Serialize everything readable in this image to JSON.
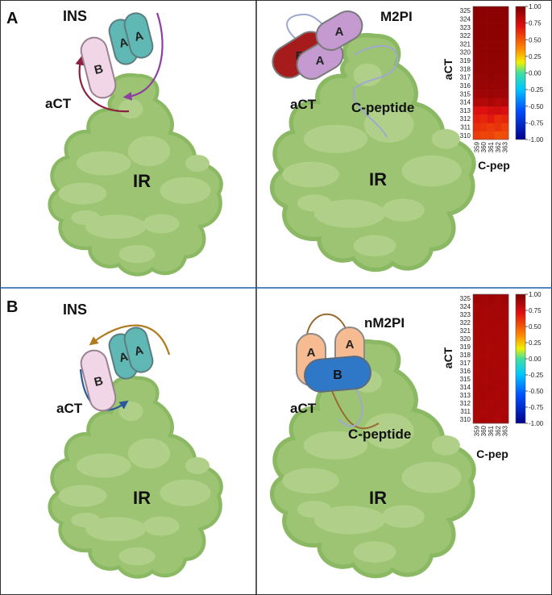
{
  "panels": [
    {
      "letter": "A",
      "left": {
        "title": "INS",
        "receptor_label": "IR",
        "actc_label": "aCT",
        "chains": [
          "B",
          "A",
          "A"
        ]
      },
      "right": {
        "title": "M2PI",
        "receptor_label": "IR",
        "actc_label": "aCT",
        "cpep_label": "C-peptide",
        "chains": [
          "B",
          "A",
          "A"
        ]
      },
      "heatmap": {
        "y_label": "aCT",
        "x_label": "C-pep"
      }
    },
    {
      "letter": "B",
      "left": {
        "title": "INS",
        "receptor_label": "IR",
        "actc_label": "aCT",
        "chains": [
          "B",
          "A",
          "A"
        ]
      },
      "right": {
        "title": "nM2PI",
        "receptor_label": "IR",
        "actc_label": "aCT",
        "cpep_label": "C-peptide",
        "chains": [
          "A",
          "A",
          "B"
        ]
      },
      "heatmap": {
        "y_label": "aCT",
        "x_label": "C-pep"
      }
    }
  ],
  "chart_data": [
    {
      "type": "heatmap",
      "x_categories": [
        "359",
        "360",
        "361",
        "362",
        "363"
      ],
      "y_categories": [
        "310",
        "311",
        "312",
        "313",
        "314",
        "315",
        "316",
        "317",
        "318",
        "319",
        "320",
        "321",
        "322",
        "323",
        "324",
        "325"
      ],
      "xlabel": "C-pep",
      "ylabel": "aCT",
      "colorbar": {
        "ticks": [
          "1.00",
          "0.75",
          "0.50",
          "0.25",
          "0.00",
          "-0.25",
          "-0.50",
          "-0.75",
          "-1.00"
        ],
        "range": [
          -1,
          1
        ]
      },
      "values": [
        [
          0.58,
          0.55,
          0.56,
          0.52,
          0.53
        ],
        [
          0.62,
          0.6,
          0.58,
          0.6,
          0.57
        ],
        [
          0.66,
          0.64,
          0.68,
          0.62,
          0.64
        ],
        [
          0.72,
          0.7,
          0.74,
          0.75,
          0.72
        ],
        [
          0.85,
          0.84,
          0.86,
          0.84,
          0.85
        ],
        [
          0.9,
          0.9,
          0.91,
          0.9,
          0.9
        ],
        [
          0.92,
          0.92,
          0.93,
          0.92,
          0.92
        ],
        [
          0.93,
          0.93,
          0.94,
          0.93,
          0.93
        ],
        [
          0.94,
          0.94,
          0.94,
          0.94,
          0.94
        ],
        [
          0.94,
          0.94,
          0.95,
          0.94,
          0.94
        ],
        [
          0.95,
          0.95,
          0.95,
          0.95,
          0.95
        ],
        [
          0.95,
          0.95,
          0.95,
          0.95,
          0.95
        ],
        [
          0.96,
          0.96,
          0.96,
          0.96,
          0.96
        ],
        [
          0.96,
          0.96,
          0.96,
          0.96,
          0.96
        ],
        [
          0.96,
          0.96,
          0.96,
          0.96,
          0.96
        ],
        [
          0.96,
          0.96,
          0.96,
          0.96,
          0.96
        ]
      ]
    },
    {
      "type": "heatmap",
      "x_categories": [
        "359",
        "360",
        "361",
        "362",
        "363"
      ],
      "y_categories": [
        "310",
        "311",
        "312",
        "313",
        "314",
        "315",
        "316",
        "317",
        "318",
        "319",
        "320",
        "321",
        "322",
        "323",
        "324",
        "325"
      ],
      "xlabel": "C-pep",
      "ylabel": "aCT",
      "colorbar": {
        "ticks": [
          "1.00",
          "0.75",
          "0.50",
          "0.25",
          "0.00",
          "-0.25",
          "-0.50",
          "-0.75",
          "-1.00"
        ],
        "range": [
          -1,
          1
        ]
      },
      "values": [
        [
          0.86,
          0.88,
          0.87,
          0.85,
          0.88
        ],
        [
          0.87,
          0.86,
          0.88,
          0.87,
          0.86
        ],
        [
          0.88,
          0.87,
          0.86,
          0.88,
          0.87
        ],
        [
          0.87,
          0.88,
          0.87,
          0.86,
          0.88
        ],
        [
          0.88,
          0.87,
          0.88,
          0.87,
          0.86
        ],
        [
          0.87,
          0.86,
          0.87,
          0.88,
          0.87
        ],
        [
          0.86,
          0.87,
          0.88,
          0.87,
          0.86
        ],
        [
          0.87,
          0.88,
          0.87,
          0.86,
          0.87
        ],
        [
          0.86,
          0.86,
          0.86,
          0.87,
          0.86
        ],
        [
          0.87,
          0.87,
          0.86,
          0.86,
          0.87
        ],
        [
          0.88,
          0.87,
          0.87,
          0.88,
          0.87
        ],
        [
          0.87,
          0.88,
          0.88,
          0.87,
          0.88
        ],
        [
          0.88,
          0.87,
          0.88,
          0.88,
          0.87
        ],
        [
          0.89,
          0.88,
          0.88,
          0.89,
          0.88
        ],
        [
          0.88,
          0.89,
          0.89,
          0.88,
          0.89
        ],
        [
          0.9,
          0.89,
          0.9,
          0.89,
          0.9
        ]
      ]
    }
  ]
}
